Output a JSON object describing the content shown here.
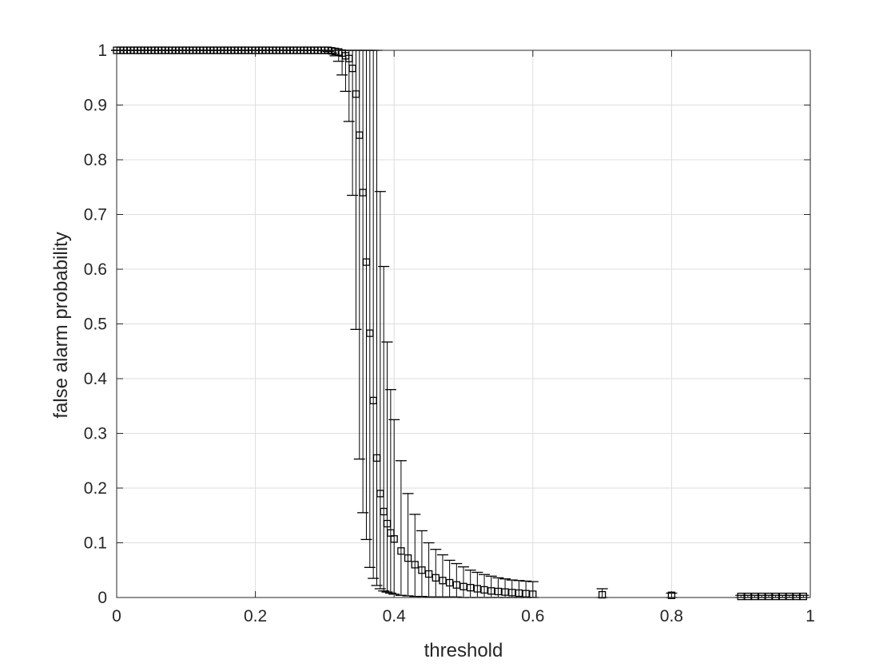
{
  "chart_data": {
    "type": "scatter",
    "title": "",
    "xlabel": "threshold",
    "ylabel": "false alarm probability",
    "xlim": [
      0,
      1
    ],
    "ylim": [
      0,
      1
    ],
    "xticks": [
      "0",
      "0.2",
      "0.4",
      "0.6",
      "0.8",
      "1"
    ],
    "yticks": [
      "0",
      "0.1",
      "0.2",
      "0.3",
      "0.4",
      "0.5",
      "0.6",
      "0.7",
      "0.8",
      "0.9",
      "1"
    ],
    "xtick_values": [
      0,
      0.2,
      0.4,
      0.6,
      0.8,
      1
    ],
    "ytick_values": [
      0,
      0.1,
      0.2,
      0.3,
      0.4,
      0.5,
      0.6,
      0.7,
      0.8,
      0.9,
      1
    ],
    "grid": true,
    "marker": "square",
    "color": "#000000",
    "series": [
      {
        "x": [
          0,
          0.005,
          0.01,
          0.015,
          0.02,
          0.025,
          0.03,
          0.035,
          0.04,
          0.045,
          0.05,
          0.055,
          0.06,
          0.065,
          0.07,
          0.075,
          0.08,
          0.085,
          0.09,
          0.095,
          0.1,
          0.105,
          0.11,
          0.115,
          0.12,
          0.125,
          0.13,
          0.135,
          0.14,
          0.145,
          0.15,
          0.155,
          0.16,
          0.165,
          0.17,
          0.175,
          0.18,
          0.185,
          0.19,
          0.195,
          0.2,
          0.205,
          0.21,
          0.215,
          0.22,
          0.225,
          0.23,
          0.235,
          0.24,
          0.245,
          0.25,
          0.255,
          0.26,
          0.265,
          0.27,
          0.275,
          0.28,
          0.285,
          0.29,
          0.295,
          0.3,
          0.305,
          0.31,
          0.315,
          0.32,
          0.325,
          0.33,
          0.335,
          0.34,
          0.345,
          0.35,
          0.355,
          0.36,
          0.365,
          0.37,
          0.375,
          0.38,
          0.385,
          0.39,
          0.395,
          0.4,
          0.41,
          0.42,
          0.43,
          0.44,
          0.45,
          0.46,
          0.47,
          0.48,
          0.49,
          0.5,
          0.51,
          0.52,
          0.53,
          0.54,
          0.55,
          0.56,
          0.57,
          0.58,
          0.59,
          0.6,
          0.7,
          0.8,
          0.9,
          0.91,
          0.92,
          0.93,
          0.94,
          0.95,
          0.96,
          0.97,
          0.98,
          0.99
        ],
        "y": [
          1,
          1,
          1,
          1,
          1,
          1,
          1,
          1,
          1,
          1,
          1,
          1,
          1,
          1,
          1,
          1,
          1,
          1,
          1,
          1,
          1,
          1,
          1,
          1,
          1,
          1,
          1,
          1,
          1,
          1,
          1,
          1,
          1,
          1,
          1,
          1,
          1,
          1,
          1,
          1,
          1,
          1,
          1,
          1,
          1,
          1,
          1,
          1,
          1,
          1,
          1,
          1,
          1,
          1,
          1,
          1,
          1,
          1,
          1,
          1,
          1,
          1,
          0.999,
          0.998,
          0.997,
          0.995,
          0.99,
          0.985,
          0.967,
          0.92,
          0.845,
          0.74,
          0.613,
          0.483,
          0.36,
          0.255,
          0.19,
          0.157,
          0.135,
          0.118,
          0.107,
          0.085,
          0.072,
          0.06,
          0.05,
          0.043,
          0.036,
          0.031,
          0.027,
          0.023,
          0.02,
          0.018,
          0.016,
          0.014,
          0.012,
          0.011,
          0.01,
          0.009,
          0.008,
          0.007,
          0.006,
          0.005,
          0.004,
          0.002,
          0.002,
          0.002,
          0.002,
          0.002,
          0.002,
          0.002,
          0.002,
          0.002,
          0.002
        ],
        "err_lo": [
          1,
          1,
          1,
          1,
          1,
          1,
          1,
          1,
          1,
          1,
          1,
          1,
          1,
          1,
          1,
          1,
          1,
          1,
          1,
          1,
          1,
          1,
          1,
          1,
          1,
          1,
          1,
          1,
          1,
          1,
          1,
          1,
          1,
          1,
          1,
          1,
          1,
          1,
          1,
          1,
          1,
          1,
          1,
          1,
          1,
          1,
          1,
          1,
          1,
          1,
          1,
          1,
          1,
          1,
          1,
          1,
          1,
          1,
          1,
          1,
          0.999,
          0.998,
          0.995,
          0.99,
          0.98,
          0.955,
          0.925,
          0.87,
          0.735,
          0.49,
          0.253,
          0.155,
          0.106,
          0.055,
          0.035,
          0.022,
          0.016,
          0.012,
          0.01,
          0.008,
          0.006,
          0.004,
          0.003,
          0.002,
          0.002,
          0.001,
          0.001,
          0.001,
          0.001,
          0.001,
          0,
          0,
          0,
          0,
          0,
          0,
          0,
          0,
          0,
          0,
          0,
          0,
          0,
          0,
          0,
          0,
          0,
          0,
          0,
          0,
          0,
          0,
          0
        ],
        "err_hi": [
          1,
          1,
          1,
          1,
          1,
          1,
          1,
          1,
          1,
          1,
          1,
          1,
          1,
          1,
          1,
          1,
          1,
          1,
          1,
          1,
          1,
          1,
          1,
          1,
          1,
          1,
          1,
          1,
          1,
          1,
          1,
          1,
          1,
          1,
          1,
          1,
          1,
          1,
          1,
          1,
          1,
          1,
          1,
          1,
          1,
          1,
          1,
          1,
          1,
          1,
          1,
          1,
          1,
          1,
          1,
          1,
          1,
          1,
          1,
          1,
          1,
          1,
          1,
          1,
          1,
          1,
          1,
          1,
          1,
          1,
          1,
          1,
          1,
          1,
          1,
          1,
          0.742,
          0.605,
          0.467,
          0.38,
          0.325,
          0.25,
          0.19,
          0.152,
          0.122,
          0.1,
          0.088,
          0.078,
          0.068,
          0.062,
          0.056,
          0.05,
          0.046,
          0.042,
          0.039,
          0.036,
          0.034,
          0.032,
          0.031,
          0.03,
          0.029,
          0.016,
          0.008,
          0.004,
          0.004,
          0.004,
          0.004,
          0.004,
          0.004,
          0.004,
          0.004,
          0.004,
          0.004
        ]
      }
    ]
  }
}
